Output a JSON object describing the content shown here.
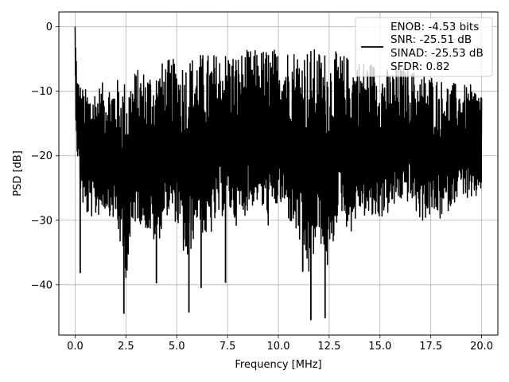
{
  "chart_data": {
    "type": "line",
    "title": "",
    "xlabel": "Frequency [MHz]",
    "ylabel": "PSD [dB]",
    "xlim": [
      -0.8,
      20.8
    ],
    "ylim": [
      -47.8,
      2.3
    ],
    "x_ticks": [
      0.0,
      2.5,
      5.0,
      7.5,
      10.0,
      12.5,
      15.0,
      17.5,
      20.0
    ],
    "x_tick_labels": [
      "0.0",
      "2.5",
      "5.0",
      "7.5",
      "10.0",
      "12.5",
      "15.0",
      "17.5",
      "20.0"
    ],
    "y_ticks": [
      0,
      -10,
      -20,
      -30,
      -40
    ],
    "y_tick_labels": [
      "0",
      "−10",
      "−20",
      "−30",
      "−40"
    ],
    "grid": true,
    "legend": {
      "placement": "top-right",
      "entries": [
        "ENOB: -4.53 bits",
        "SNR: -25.51 dB",
        "SINAD: -25.53 dB",
        "SFDR: 0.82"
      ]
    },
    "series": [
      {
        "color": "#000000",
        "envelope": {
          "x": [
            0.0,
            0.05,
            0.1,
            0.3,
            0.5,
            1.0,
            1.5,
            2.0,
            2.5,
            3.0,
            3.5,
            4.0,
            4.5,
            5.0,
            5.5,
            6.0,
            6.5,
            7.0,
            7.5,
            8.0,
            8.5,
            9.0,
            9.5,
            10.0,
            10.5,
            11.0,
            11.5,
            12.0,
            12.5,
            13.0,
            13.5,
            14.0,
            14.5,
            15.0,
            15.5,
            16.0,
            16.5,
            17.0,
            17.5,
            18.0,
            18.5,
            19.0,
            19.5,
            20.0
          ],
          "upper": [
            0.0,
            -3.0,
            -7.0,
            -9.0,
            -9.5,
            -9.0,
            -8.5,
            -8.0,
            -8.0,
            -6.5,
            -6.5,
            -6.0,
            -5.0,
            -5.0,
            -4.5,
            -4.0,
            -4.0,
            -4.0,
            -3.5,
            -4.0,
            -3.5,
            -3.5,
            -3.0,
            -3.5,
            -3.0,
            -3.0,
            -3.0,
            -3.5,
            -3.5,
            -4.0,
            -4.5,
            -5.0,
            -5.0,
            -6.0,
            -6.5,
            -6.0,
            -6.5,
            -7.0,
            -7.0,
            -8.0,
            -8.5,
            -9.0,
            -9.0,
            -9.5
          ],
          "lower": [
            -8.0,
            -18.0,
            -22.0,
            -30.0,
            -33.0,
            -33.5,
            -32.0,
            -34.5,
            -44.5,
            -34.0,
            -36.0,
            -39.5,
            -33.5,
            -35.0,
            -44.0,
            -35.0,
            -39.0,
            -35.0,
            -33.0,
            -36.0,
            -33.0,
            -31.5,
            -36.0,
            -32.0,
            -35.0,
            -39.0,
            -45.5,
            -38.0,
            -45.0,
            -32.0,
            -37.5,
            -33.0,
            -35.0,
            -34.0,
            -33.0,
            -31.0,
            -31.0,
            -34.5,
            -33.5,
            -34.0,
            -31.5,
            -28.5,
            -31.5,
            -28.0
          ]
        },
        "spikes": [
          {
            "x": 2.4,
            "y": -44.5
          },
          {
            "x": 5.6,
            "y": -44.3
          },
          {
            "x": 11.6,
            "y": -45.5
          },
          {
            "x": 12.3,
            "y": -45.2
          },
          {
            "x": 4.0,
            "y": -39.8
          },
          {
            "x": 6.2,
            "y": -40.5
          },
          {
            "x": 7.4,
            "y": -39.7
          },
          {
            "x": 11.2,
            "y": -38.0
          },
          {
            "x": 0.25,
            "y": -38.2
          }
        ]
      }
    ]
  }
}
